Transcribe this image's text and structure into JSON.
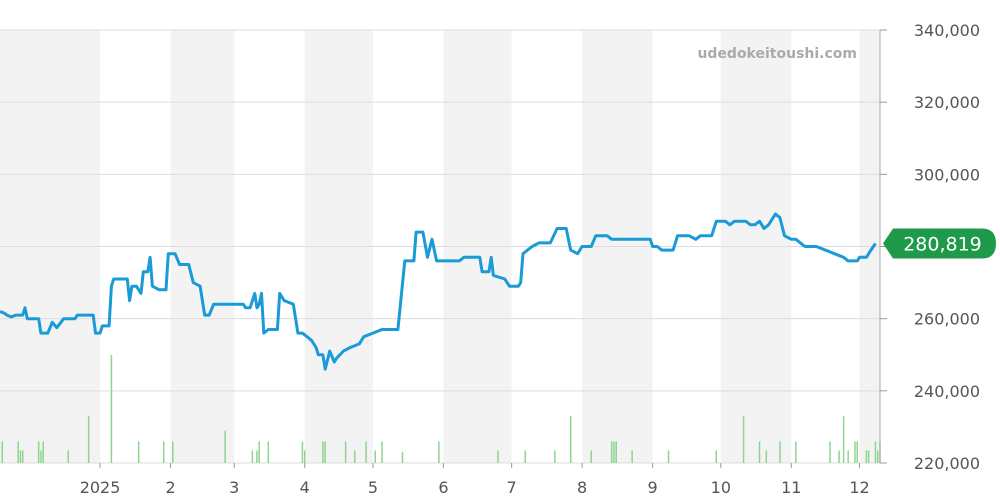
{
  "watermark": "udedokeitoushi.com",
  "colors": {
    "price_line": "#1a9ad6",
    "volume_bar": "#8fd48f",
    "badge": "#1f9a4a",
    "band": "#f3f3f3",
    "grid": "#dddddd"
  },
  "chart_data": {
    "type": "line",
    "ylim": [
      220000,
      340000
    ],
    "y_ticks": [
      {
        "value": 220000,
        "label": "220,000"
      },
      {
        "value": 240000,
        "label": "240,000"
      },
      {
        "value": 260000,
        "label": "260,000"
      },
      {
        "value": 280000,
        "label": "280,000"
      },
      {
        "value": 300000,
        "label": "300,000"
      },
      {
        "value": 320000,
        "label": "320,000"
      },
      {
        "value": 340000,
        "label": "340,000"
      }
    ],
    "xlim": [
      "2024-11-18",
      "2025-12-10"
    ],
    "x_ticks": [
      {
        "date": "2025-01-01",
        "label": "2025"
      },
      {
        "date": "2025-02-01",
        "label": "2"
      },
      {
        "date": "2025-03-01",
        "label": "3"
      },
      {
        "date": "2025-04-01",
        "label": "4"
      },
      {
        "date": "2025-05-01",
        "label": "5"
      },
      {
        "date": "2025-06-01",
        "label": "6"
      },
      {
        "date": "2025-07-01",
        "label": "7"
      },
      {
        "date": "2025-08-01",
        "label": "8"
      },
      {
        "date": "2025-09-01",
        "label": "9"
      },
      {
        "date": "2025-10-01",
        "label": "10"
      },
      {
        "date": "2025-11-01",
        "label": "11"
      },
      {
        "date": "2025-12-01",
        "label": "12"
      }
    ],
    "last_value_label": "280,819",
    "series": [
      {
        "type": "line",
        "points": [
          [
            "2024-11-18",
            262000
          ],
          [
            "2024-11-20",
            261500
          ],
          [
            "2024-11-21",
            261000
          ],
          [
            "2024-11-23",
            260500
          ],
          [
            "2024-11-25",
            261000
          ],
          [
            "2024-11-28",
            261000
          ],
          [
            "2024-11-29",
            263000
          ],
          [
            "2024-11-30",
            260000
          ],
          [
            "2024-12-05",
            260000
          ],
          [
            "2024-12-06",
            256000
          ],
          [
            "2024-12-09",
            256000
          ],
          [
            "2024-12-11",
            259000
          ],
          [
            "2024-12-13",
            257500
          ],
          [
            "2024-12-16",
            260000
          ],
          [
            "2024-12-21",
            260000
          ],
          [
            "2024-12-22",
            261000
          ],
          [
            "2024-12-29",
            261000
          ],
          [
            "2024-12-30",
            256000
          ],
          [
            "2025-01-01",
            256000
          ],
          [
            "2025-01-02",
            258000
          ],
          [
            "2025-01-05",
            258000
          ],
          [
            "2025-01-06",
            269000
          ],
          [
            "2025-01-07",
            271000
          ],
          [
            "2025-01-13",
            271000
          ],
          [
            "2025-01-14",
            265000
          ],
          [
            "2025-01-15",
            269000
          ],
          [
            "2025-01-17",
            269000
          ],
          [
            "2025-01-19",
            267000
          ],
          [
            "2025-01-20",
            273000
          ],
          [
            "2025-01-22",
            273000
          ],
          [
            "2025-01-23",
            277000
          ],
          [
            "2025-01-24",
            269000
          ],
          [
            "2025-01-27",
            268000
          ],
          [
            "2025-01-30",
            268000
          ],
          [
            "2025-01-31",
            278000
          ],
          [
            "2025-02-03",
            278000
          ],
          [
            "2025-02-05",
            275000
          ],
          [
            "2025-02-09",
            275000
          ],
          [
            "2025-02-11",
            270000
          ],
          [
            "2025-02-14",
            269000
          ],
          [
            "2025-02-16",
            261000
          ],
          [
            "2025-02-18",
            261000
          ],
          [
            "2025-02-20",
            264000
          ],
          [
            "2025-03-05",
            264000
          ],
          [
            "2025-03-06",
            263000
          ],
          [
            "2025-03-08",
            263000
          ],
          [
            "2025-03-10",
            267000
          ],
          [
            "2025-03-11",
            263000
          ],
          [
            "2025-03-12",
            264000
          ],
          [
            "2025-03-13",
            267000
          ],
          [
            "2025-03-14",
            256000
          ],
          [
            "2025-03-16",
            257000
          ],
          [
            "2025-03-17",
            257000
          ],
          [
            "2025-03-20",
            257000
          ],
          [
            "2025-03-21",
            267000
          ],
          [
            "2025-03-23",
            265000
          ],
          [
            "2025-03-27",
            264000
          ],
          [
            "2025-03-29",
            256000
          ],
          [
            "2025-03-31",
            256000
          ],
          [
            "2025-04-02",
            255000
          ],
          [
            "2025-04-04",
            254000
          ],
          [
            "2025-04-06",
            252000
          ],
          [
            "2025-04-07",
            250000
          ],
          [
            "2025-04-09",
            250000
          ],
          [
            "2025-04-10",
            246000
          ],
          [
            "2025-04-12",
            251000
          ],
          [
            "2025-04-14",
            248000
          ],
          [
            "2025-04-15",
            249000
          ],
          [
            "2025-04-18",
            251000
          ],
          [
            "2025-04-21",
            252000
          ],
          [
            "2025-04-25",
            253000
          ],
          [
            "2025-04-27",
            255000
          ],
          [
            "2025-05-01",
            256000
          ],
          [
            "2025-05-05",
            257000
          ],
          [
            "2025-05-12",
            257000
          ],
          [
            "2025-05-15",
            276000
          ],
          [
            "2025-05-19",
            276000
          ],
          [
            "2025-05-20",
            284000
          ],
          [
            "2025-05-23",
            284000
          ],
          [
            "2025-05-25",
            277000
          ],
          [
            "2025-05-27",
            282000
          ],
          [
            "2025-05-29",
            276000
          ],
          [
            "2025-06-08",
            276000
          ],
          [
            "2025-06-10",
            277000
          ],
          [
            "2025-06-17",
            277000
          ],
          [
            "2025-06-18",
            273000
          ],
          [
            "2025-06-21",
            273000
          ],
          [
            "2025-06-22",
            277000
          ],
          [
            "2025-06-23",
            272000
          ],
          [
            "2025-06-28",
            271000
          ],
          [
            "2025-06-30",
            269000
          ],
          [
            "2025-07-04",
            269000
          ],
          [
            "2025-07-05",
            270000
          ],
          [
            "2025-07-06",
            278000
          ],
          [
            "2025-07-10",
            280000
          ],
          [
            "2025-07-13",
            281000
          ],
          [
            "2025-07-18",
            281000
          ],
          [
            "2025-07-21",
            285000
          ],
          [
            "2025-07-25",
            285000
          ],
          [
            "2025-07-27",
            279000
          ],
          [
            "2025-07-30",
            278000
          ],
          [
            "2025-08-01",
            280000
          ],
          [
            "2025-08-05",
            280000
          ],
          [
            "2025-08-07",
            283000
          ],
          [
            "2025-08-12",
            283000
          ],
          [
            "2025-08-14",
            282000
          ],
          [
            "2025-08-31",
            282000
          ],
          [
            "2025-09-01",
            280000
          ],
          [
            "2025-09-03",
            280000
          ],
          [
            "2025-09-05",
            279000
          ],
          [
            "2025-09-10",
            279000
          ],
          [
            "2025-09-12",
            283000
          ],
          [
            "2025-09-17",
            283000
          ],
          [
            "2025-09-20",
            282000
          ],
          [
            "2025-09-22",
            283000
          ],
          [
            "2025-09-27",
            283000
          ],
          [
            "2025-09-29",
            287000
          ],
          [
            "2025-10-03",
            287000
          ],
          [
            "2025-10-05",
            286000
          ],
          [
            "2025-10-07",
            287000
          ],
          [
            "2025-10-12",
            287000
          ],
          [
            "2025-10-14",
            286000
          ],
          [
            "2025-10-16",
            286000
          ],
          [
            "2025-10-18",
            287000
          ],
          [
            "2025-10-20",
            285000
          ],
          [
            "2025-10-22",
            286000
          ],
          [
            "2025-10-25",
            289000
          ],
          [
            "2025-10-27",
            288000
          ],
          [
            "2025-10-29",
            283000
          ],
          [
            "2025-11-01",
            282000
          ],
          [
            "2025-11-03",
            282000
          ],
          [
            "2025-11-05",
            281000
          ],
          [
            "2025-11-07",
            280000
          ],
          [
            "2025-11-12",
            280000
          ],
          [
            "2025-11-16",
            279000
          ],
          [
            "2025-11-20",
            278000
          ],
          [
            "2025-11-24",
            277000
          ],
          [
            "2025-11-26",
            276000
          ],
          [
            "2025-11-30",
            276000
          ],
          [
            "2025-12-01",
            277000
          ],
          [
            "2025-12-04",
            277000
          ],
          [
            "2025-12-06",
            279000
          ],
          [
            "2025-12-08",
            280819
          ]
        ]
      },
      {
        "type": "bar",
        "bars": [
          [
            "2024-11-19",
            6
          ],
          [
            "2024-11-26",
            6
          ],
          [
            "2024-11-27",
            3.5
          ],
          [
            "2024-11-28",
            3.5
          ],
          [
            "2024-12-05",
            6
          ],
          [
            "2024-12-06",
            3.5
          ],
          [
            "2024-12-07",
            6
          ],
          [
            "2024-12-18",
            3.5
          ],
          [
            "2024-12-27",
            13
          ],
          [
            "2025-01-06",
            30
          ],
          [
            "2025-01-18",
            6
          ],
          [
            "2025-01-29",
            6
          ],
          [
            "2025-02-02",
            6
          ],
          [
            "2025-02-25",
            9
          ],
          [
            "2025-03-09",
            3.5
          ],
          [
            "2025-03-11",
            3.5
          ],
          [
            "2025-03-12",
            6
          ],
          [
            "2025-03-16",
            6
          ],
          [
            "2025-03-31",
            6
          ],
          [
            "2025-04-01",
            3.5
          ],
          [
            "2025-04-09",
            6
          ],
          [
            "2025-04-10",
            6
          ],
          [
            "2025-04-19",
            6
          ],
          [
            "2025-04-23",
            3.5
          ],
          [
            "2025-04-28",
            6
          ],
          [
            "2025-05-02",
            3.5
          ],
          [
            "2025-05-05",
            6
          ],
          [
            "2025-05-14",
            3
          ],
          [
            "2025-05-30",
            6
          ],
          [
            "2025-06-25",
            3.5
          ],
          [
            "2025-07-07",
            3.5
          ],
          [
            "2025-07-20",
            3.5
          ],
          [
            "2025-07-27",
            13
          ],
          [
            "2025-08-05",
            3.5
          ],
          [
            "2025-08-14",
            6
          ],
          [
            "2025-08-15",
            6
          ],
          [
            "2025-08-16",
            6
          ],
          [
            "2025-08-23",
            3.5
          ],
          [
            "2025-09-08",
            3.5
          ],
          [
            "2025-09-29",
            3.5
          ],
          [
            "2025-10-11",
            13
          ],
          [
            "2025-10-18",
            6
          ],
          [
            "2025-10-21",
            3.5
          ],
          [
            "2025-10-27",
            6
          ],
          [
            "2025-11-03",
            6
          ],
          [
            "2025-11-18",
            6
          ],
          [
            "2025-11-22",
            3.5
          ],
          [
            "2025-11-24",
            13
          ],
          [
            "2025-11-26",
            3.5
          ],
          [
            "2025-11-29",
            6
          ],
          [
            "2025-11-30",
            6
          ],
          [
            "2025-12-04",
            3.5
          ],
          [
            "2025-12-05",
            3.5
          ],
          [
            "2025-12-08",
            6
          ],
          [
            "2025-12-09",
            3.5
          ],
          [
            "2025-12-10",
            6
          ]
        ]
      }
    ]
  }
}
